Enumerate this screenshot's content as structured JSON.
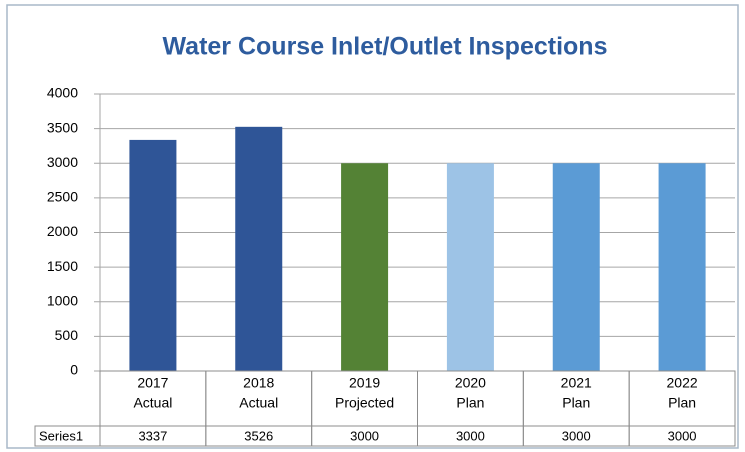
{
  "chart_data": {
    "type": "bar",
    "title": "Water Course Inlet/Outlet Inspections",
    "categories": [
      [
        "2017",
        "Actual"
      ],
      [
        "2018",
        "Actual"
      ],
      [
        "2019",
        "Projected"
      ],
      [
        "2020",
        "Plan"
      ],
      [
        "2021",
        "Plan"
      ],
      [
        "2022",
        "Plan"
      ]
    ],
    "series_name": "Series1",
    "values": [
      3337,
      3526,
      3000,
      3000,
      3000,
      3000
    ],
    "colors": [
      "#2f5597",
      "#2f5597",
      "#548235",
      "#9dc3e6",
      "#5b9bd5",
      "#5b9bd5"
    ],
    "ylim": [
      0,
      4000
    ],
    "yticks": [
      0,
      500,
      1000,
      1500,
      2000,
      2500,
      3000,
      3500,
      4000
    ],
    "grid": true
  }
}
